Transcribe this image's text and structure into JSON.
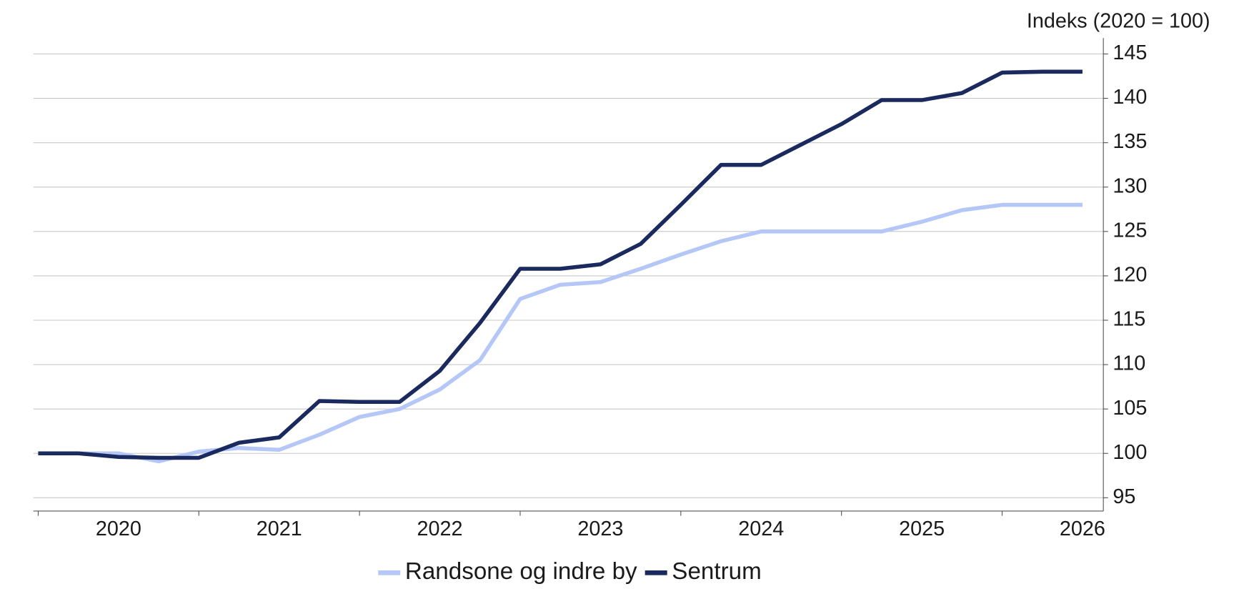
{
  "chart_data": {
    "type": "line",
    "title": "Indeks (2020 = 100)",
    "x": [
      2020,
      2020.25,
      2020.5,
      2020.75,
      2021,
      2021.25,
      2021.5,
      2021.75,
      2022,
      2022.25,
      2022.5,
      2022.75,
      2023,
      2023.25,
      2023.5,
      2023.75,
      2024,
      2024.25,
      2024.5,
      2024.75,
      2025,
      2025.25,
      2025.5,
      2025.75,
      2026,
      2026.25,
      2026.5
    ],
    "series": [
      {
        "name": "Randsone og indre by",
        "color": "#b4c7f7",
        "values": [
          100,
          100,
          100,
          99.1,
          100.2,
          100.6,
          100.4,
          102.1,
          104.1,
          105,
          107.2,
          110.5,
          117.4,
          119,
          119.3,
          120.8,
          122.4,
          123.9,
          125,
          125,
          125,
          125,
          126.1,
          127.4,
          128,
          128,
          128
        ]
      },
      {
        "name": "Sentrum",
        "color": "#1b2a5e",
        "values": [
          100,
          100,
          99.6,
          99.5,
          99.5,
          101.2,
          101.8,
          105.9,
          105.8,
          105.8,
          109.3,
          114.7,
          120.8,
          120.8,
          121.3,
          123.6,
          128,
          132.5,
          132.5,
          134.8,
          137.1,
          139.8,
          139.8,
          140.6,
          142.9,
          143,
          143
        ]
      }
    ],
    "xlim": [
      2019.97,
      2026.63
    ],
    "xticks": [
      {
        "value": 2020.5,
        "label": "2020"
      },
      {
        "value": 2021.5,
        "label": "2021"
      },
      {
        "value": 2022.5,
        "label": "2022"
      },
      {
        "value": 2023.5,
        "label": "2023"
      },
      {
        "value": 2024.5,
        "label": "2024"
      },
      {
        "value": 2025.5,
        "label": "2025"
      },
      {
        "value": 2026.5,
        "label": "2026"
      }
    ],
    "ylim": [
      93.5,
      146.8
    ],
    "yticks": [
      95,
      100,
      105,
      110,
      115,
      120,
      125,
      130,
      135,
      140,
      145
    ],
    "grid": true,
    "legend": "bottom"
  }
}
